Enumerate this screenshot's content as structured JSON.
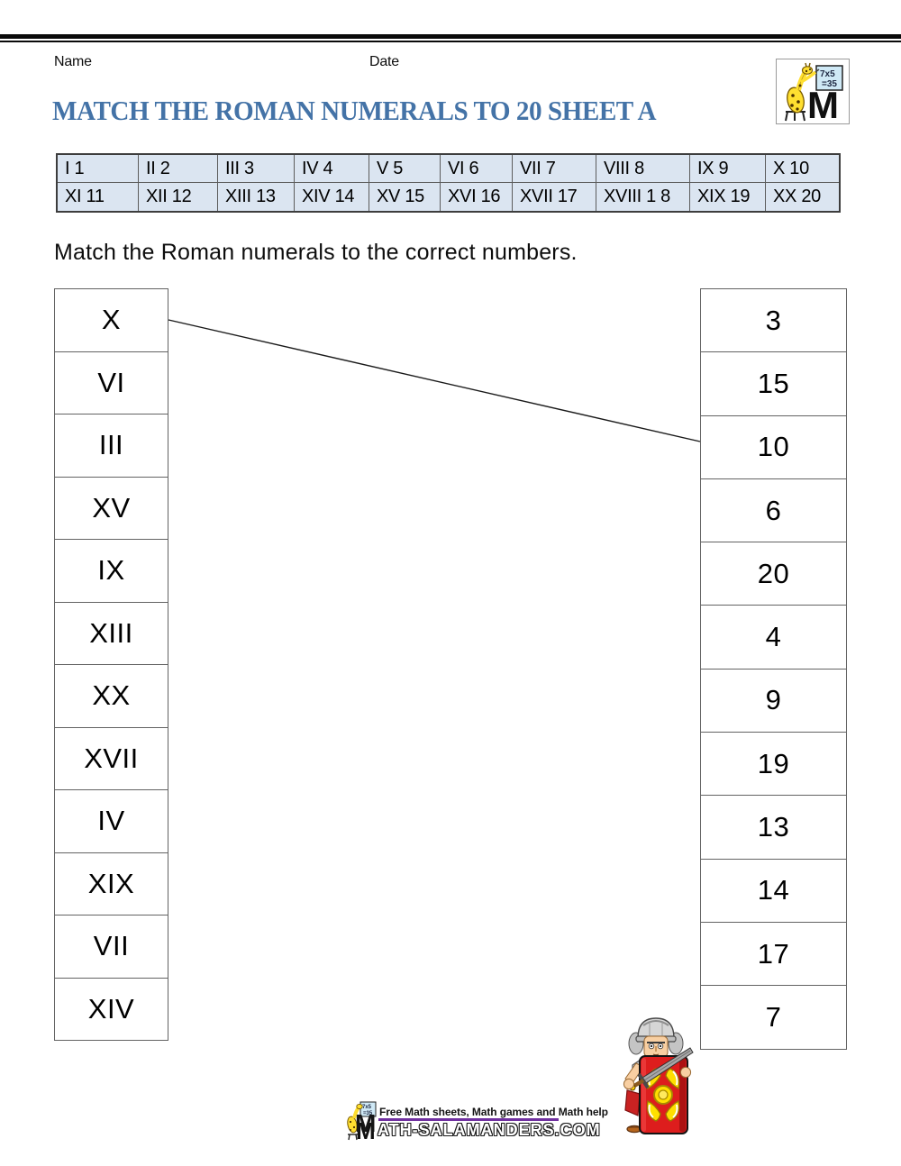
{
  "header": {
    "name_label": "Name",
    "date_label": "Date"
  },
  "title": "MATCH THE ROMAN NUMERALS TO 20 SHEET A",
  "instruction": "Match the Roman numerals to the correct numbers.",
  "reference_table": {
    "rows": [
      [
        "I 1",
        "II 2",
        "III 3",
        "IV 4",
        "V 5",
        "VI 6",
        "VII 7",
        "VIII 8",
        "IX 9",
        "X 10"
      ],
      [
        "XI 11",
        "XII 12",
        "XIII 13",
        "XIV 14",
        "XV 15",
        "XVI 16",
        "XVII 17",
        "XVIII 1 8",
        "XIX 19",
        "XX 20"
      ]
    ]
  },
  "matching": {
    "left_items": [
      "X",
      "VI",
      "III",
      "XV",
      "IX",
      "XIII",
      "XX",
      "XVII",
      "IV",
      "XIX",
      "VII",
      "XIV"
    ],
    "right_items": [
      "3",
      "15",
      "10",
      "6",
      "20",
      "4",
      "9",
      "19",
      "13",
      "14",
      "17",
      "7"
    ],
    "drawn_line": {
      "from_left_index": 0,
      "to_right_index": 2
    }
  },
  "logo": {
    "board_line1": "7x5",
    "board_line2": "=35",
    "m_glyph": "M"
  },
  "footer": {
    "tagline": "Free Math sheets, Math games and Math help",
    "site_m": "M",
    "site_rest": "ATH-SALAMANDERS.COM"
  },
  "colors": {
    "title_blue": "#4473a7",
    "table_bg": "#dbe5f1",
    "accent_purple": "#7030a0",
    "shield_red": "#dd1d1d"
  }
}
